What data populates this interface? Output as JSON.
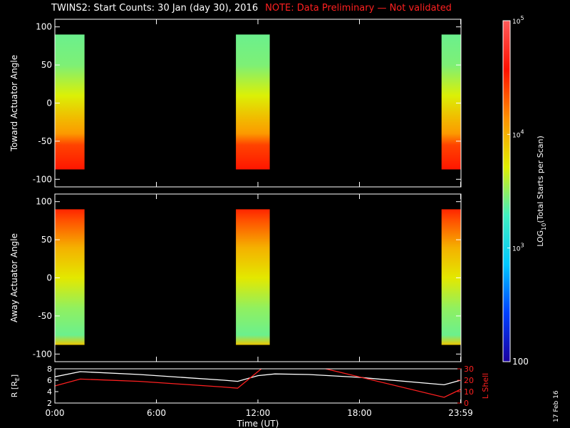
{
  "title": "TWINS2: Start Counts: 30 Jan (day  30), 2016",
  "note": "NOTE: Data Preliminary — Not validated",
  "date_stamp": "17 Feb 16",
  "colors": {
    "background": "#000000",
    "note": "#ff2020",
    "axes": "#ffffff",
    "l_shell": "#ff2020"
  },
  "chart_data": [
    {
      "type": "heatmap",
      "panel": "toward",
      "ylabel": "Toward Actuator Angle",
      "ylim": [
        -110,
        110
      ],
      "yticks": [
        "-100",
        "-50",
        "0",
        "50",
        "100"
      ],
      "xlim": [
        0,
        24
      ],
      "time_blocks_hours": [
        [
          0,
          1.75
        ],
        [
          10.7,
          12.7
        ],
        [
          22.85,
          23.98
        ]
      ],
      "angle_range": [
        -87,
        90
      ],
      "profile": [
        {
          "angle": 90,
          "log_counts": 3.4
        },
        {
          "angle": 50,
          "log_counts": 3.45
        },
        {
          "angle": 10,
          "log_counts": 3.7
        },
        {
          "angle": -20,
          "log_counts": 3.95
        },
        {
          "angle": -40,
          "log_counts": 4.1
        },
        {
          "angle": -55,
          "log_counts": 4.4
        },
        {
          "angle": -87,
          "log_counts": 4.55
        }
      ],
      "scale": "log"
    },
    {
      "type": "heatmap",
      "panel": "away",
      "ylabel": "Away Actuator Angle",
      "ylim": [
        -110,
        110
      ],
      "yticks": [
        "-100",
        "-50",
        "0",
        "50",
        "100"
      ],
      "xlim": [
        0,
        24
      ],
      "time_blocks_hours": [
        [
          0,
          1.75
        ],
        [
          10.7,
          12.7
        ],
        [
          22.85,
          23.98
        ]
      ],
      "angle_range": [
        -88,
        90
      ],
      "profile": [
        {
          "angle": 90,
          "log_counts": 4.5
        },
        {
          "angle": 75,
          "log_counts": 4.35
        },
        {
          "angle": 40,
          "log_counts": 4.0
        },
        {
          "angle": 0,
          "log_counts": 3.75
        },
        {
          "angle": -40,
          "log_counts": 3.5
        },
        {
          "angle": -75,
          "log_counts": 3.4
        },
        {
          "angle": -88,
          "log_counts": 3.9
        }
      ],
      "scale": "log"
    },
    {
      "type": "colorbar",
      "label": "LOG10(Total Starts per Scan)",
      "range": [
        2,
        5
      ],
      "ticks": [
        {
          "value": 2,
          "label": "100"
        },
        {
          "value": 3,
          "label": "10^3"
        },
        {
          "value": 4,
          "label": "10^4"
        },
        {
          "value": 5,
          "label": "10^5"
        }
      ],
      "palette": [
        "#1a00a0",
        "#0040ff",
        "#00c8ff",
        "#40f0c0",
        "#e0f000",
        "#ff9000",
        "#ff1000",
        "#ff5a5a"
      ]
    },
    {
      "type": "line",
      "panel": "orbit",
      "xlabel": "Time (UT)",
      "xlim": [
        0,
        24
      ],
      "xticks": [
        {
          "x": 0,
          "label": "0:00"
        },
        {
          "x": 6,
          "label": "6:00"
        },
        {
          "x": 12,
          "label": "12:00"
        },
        {
          "x": 18,
          "label": "18:00"
        },
        {
          "x": 23.98,
          "label": "23:59"
        }
      ],
      "ylabel_left": "R [RE]",
      "ylim_left": [
        2,
        8
      ],
      "yticks_left": [
        "2",
        "4",
        "6",
        "8"
      ],
      "ylabel_right": "L Shell",
      "ylim_right": [
        0,
        30
      ],
      "yticks_right": [
        "0",
        "10",
        "20",
        "30"
      ],
      "series": [
        {
          "name": "R",
          "axis": "left",
          "x": [
            0,
            1.5,
            5,
            10,
            10.8,
            12,
            13,
            15,
            18,
            23,
            23.98
          ],
          "y": [
            6.6,
            7.5,
            7.0,
            6.0,
            5.8,
            6.8,
            7.1,
            7.0,
            6.5,
            5.2,
            6.0
          ]
        },
        {
          "name": "L Shell",
          "axis": "right",
          "x": [
            0,
            1.5,
            5,
            10,
            10.8,
            12.2,
            12.3,
            15.8,
            16.0,
            23,
            23.98
          ],
          "y": [
            15,
            21,
            19,
            14,
            13,
            30,
            31,
            31,
            30,
            5,
            12
          ]
        }
      ]
    }
  ]
}
